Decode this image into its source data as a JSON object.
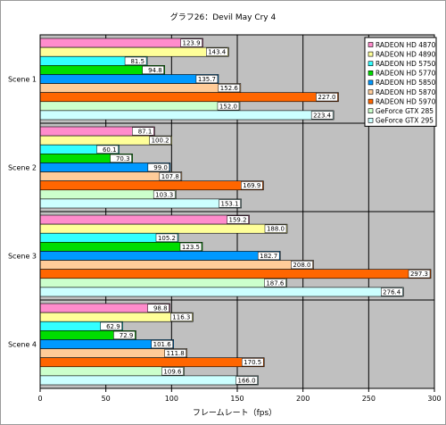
{
  "chart_data": {
    "type": "bar",
    "orientation": "horizontal",
    "title": "グラフ26：Devil May Cry 4",
    "xlabel": "フレームレート（fps）",
    "ylabel": "",
    "xlim": [
      0,
      300
    ],
    "xticks": [
      0,
      50,
      100,
      150,
      200,
      250,
      300
    ],
    "grid": true,
    "legend_position": "right",
    "categories": [
      "Scene 1",
      "Scene 2",
      "Scene 3",
      "Scene 4"
    ],
    "series": [
      {
        "name": "RADEON HD 4870",
        "color": "#ff8ccc",
        "values": [
          123.9,
          87.1,
          159.2,
          98.8
        ]
      },
      {
        "name": "RADEON HD 4890",
        "color": "#ffff99",
        "values": [
          143.4,
          100.2,
          188.0,
          116.3
        ]
      },
      {
        "name": "RADEON HD 5750",
        "color": "#33ffff",
        "values": [
          81.5,
          60.1,
          105.2,
          62.9
        ]
      },
      {
        "name": "RADEON HD 5770",
        "color": "#00dd00",
        "values": [
          94.8,
          70.3,
          123.5,
          72.9
        ]
      },
      {
        "name": "RADEON HD 5850",
        "color": "#0099ff",
        "values": [
          135.7,
          99.0,
          182.7,
          101.6
        ]
      },
      {
        "name": "RADEON HD 5870",
        "color": "#ffcc99",
        "values": [
          152.6,
          107.8,
          208.0,
          111.8
        ]
      },
      {
        "name": "RADEON HD 5970",
        "color": "#ff6600",
        "values": [
          227.0,
          169.9,
          297.3,
          170.5
        ]
      },
      {
        "name": "GeForce GTX 285",
        "color": "#ccffcc",
        "values": [
          152.0,
          103.3,
          187.6,
          109.6
        ]
      },
      {
        "name": "GeForce GTX 295",
        "color": "#ccffff",
        "values": [
          223.4,
          153.1,
          276.4,
          166.0
        ]
      }
    ]
  }
}
